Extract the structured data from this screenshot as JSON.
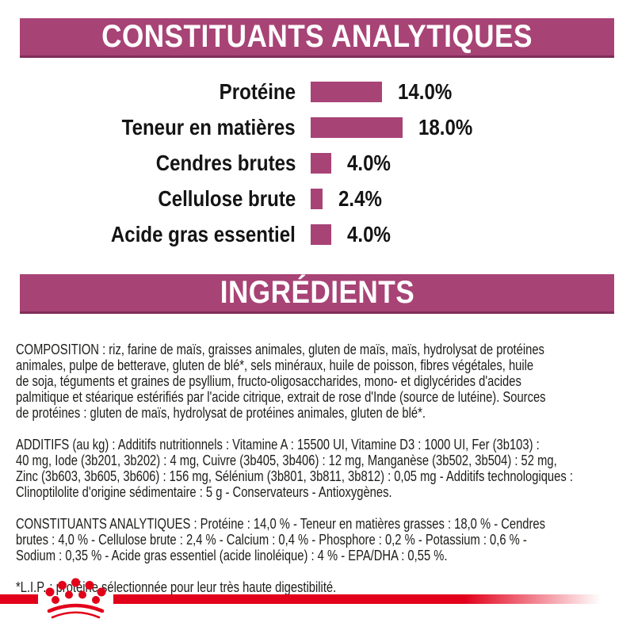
{
  "colors": {
    "accent_magenta": "#a84376",
    "brand_red": "#e2001a",
    "text": "#1d1d1b",
    "band_text": "#ffffff"
  },
  "headers": {
    "analytical": "CONSTITUANTS ANALYTIQUES",
    "ingredients": "INGRÉDIENTS"
  },
  "chart_data": {
    "type": "bar",
    "orientation": "horizontal",
    "categories": [
      "Protéine",
      "Teneur en matières",
      "Cendres brutes",
      "Cellulose brute",
      "Acide gras essentiel"
    ],
    "values": [
      14.0,
      18.0,
      4.0,
      2.4,
      4.0
    ],
    "value_labels": [
      "14.0%",
      "18.0%",
      "4.0%",
      "2.4%",
      "4.0%"
    ],
    "unit": "%",
    "xlim": [
      0,
      20
    ],
    "bar_color": "#a84376",
    "axis": "none",
    "grid": false,
    "value_label_position": "right-of-bar"
  },
  "ingredients_text": {
    "composition": "COMPOSITION : riz, farine de maïs, graisses animales, gluten de maïs, maïs, hydrolysat de protéines\nanimales, pulpe de betterave, gluten de blé*, sels minéraux, huile de poisson, fibres végétales, huile\nde soja, téguments et graines de psyllium, fructo-oligosaccharides, mono- et diglycérides d'acides\npalmitique et stéarique estérifiés par l'acide citrique, extrait de rose d'Inde (source de lutéine). Sources\nde protéines : gluten de maïs, hydrolysat de protéines animales, gluten de blé*.",
    "additifs": "ADDITIFS (au kg) : Additifs nutritionnels : Vitamine A : 15500 UI, Vitamine D3 : 1000 UI, Fer (3b103) :\n40 mg, Iode (3b201, 3b202) : 4 mg, Cuivre (3b405, 3b406) : 12 mg, Manganèse (3b502, 3b504) : 52 mg,\nZinc (3b603, 3b605, 3b606) : 156 mg, Sélénium (3b801, 3b811, 3b812) : 0,05 mg - Additifs technologiques :\nClinoptilolite d'origine sédimentaire : 5 g - Conservateurs - Antioxygènes.",
    "constituants": "CONSTITUANTS ANALYTIQUES : Protéine : 14,0 % - Teneur en matières grasses : 18,0 % - Cendres\nbrutes : 4,0 % - Cellulose brute : 2,4 % - Calcium : 0,4 % - Phosphore : 0,2 % - Potassium : 0,6 % -\nSodium : 0,35 % - Acide gras essentiel (acide linoléique) : 4 % - EPA/DHA : 0,55 %.",
    "lip_note": "*L.I.P. : protéine sélectionnée pour leur très haute digestibilité."
  },
  "branding": {
    "logo": "royal-canin-crown"
  }
}
